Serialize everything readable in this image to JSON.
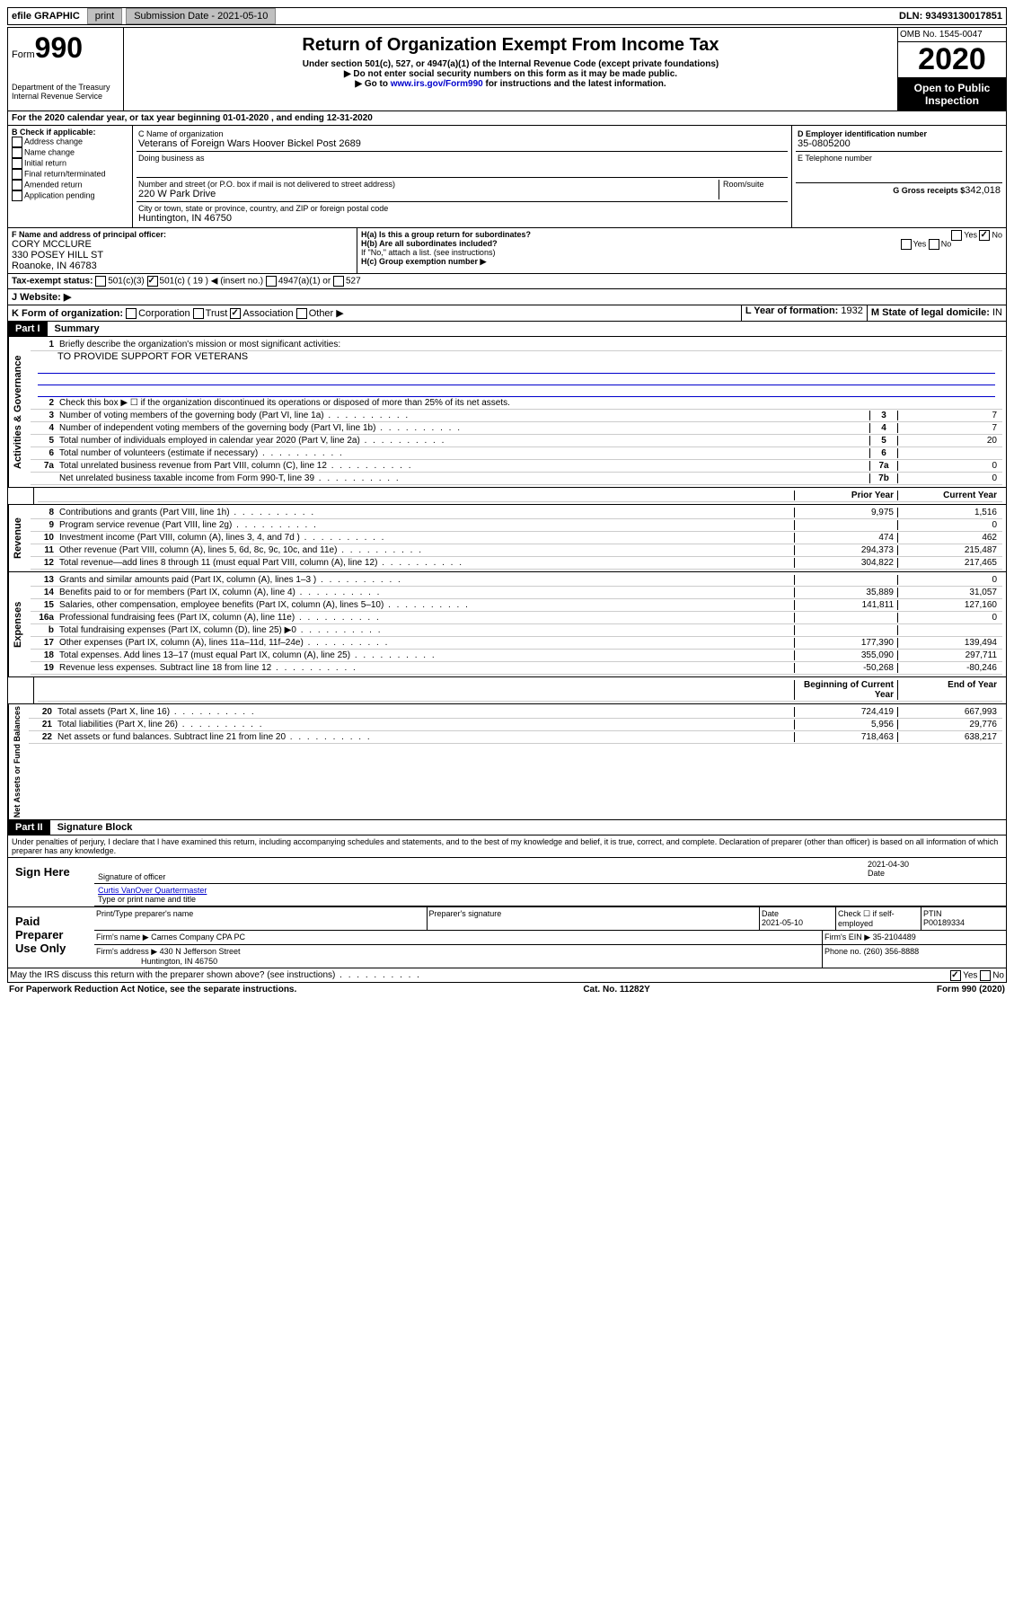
{
  "topbar": {
    "efile": "efile GRAPHIC",
    "print": "print",
    "sub_label": "Submission Date - 2021-05-10",
    "dln": "DLN: 93493130017851"
  },
  "header": {
    "form_label": "Form",
    "form_no": "990",
    "dept": "Department of the Treasury\nInternal Revenue Service",
    "title": "Return of Organization Exempt From Income Tax",
    "sub1": "Under section 501(c), 527, or 4947(a)(1) of the Internal Revenue Code (except private foundations)",
    "sub2": "▶ Do not enter social security numbers on this form as it may be made public.",
    "sub3_pre": "▶ Go to ",
    "sub3_link": "www.irs.gov/Form990",
    "sub3_post": " for instructions and the latest information.",
    "omb": "OMB No. 1545-0047",
    "year": "2020",
    "open": "Open to Public Inspection"
  },
  "a_line": "For the 2020 calendar year, or tax year beginning 01-01-2020    , and ending 12-31-2020",
  "b": {
    "label": "B Check if applicable:",
    "address": "Address change",
    "name": "Name change",
    "initial": "Initial return",
    "final": "Final return/terminated",
    "amended": "Amended return",
    "pending": "Application pending"
  },
  "c": {
    "name_label": "C Name of organization",
    "name": "Veterans of Foreign Wars Hoover Bickel Post 2689",
    "dba": "Doing business as",
    "addr_label": "Number and street (or P.O. box if mail is not delivered to street address)",
    "room": "Room/suite",
    "addr": "220 W Park Drive",
    "city_label": "City or town, state or province, country, and ZIP or foreign postal code",
    "city": "Huntington, IN  46750"
  },
  "d": {
    "label": "D Employer identification number",
    "ein": "35-0805200"
  },
  "e": {
    "label": "E Telephone number"
  },
  "f": {
    "label": "F  Name and address of principal officer:",
    "name": "CORY MCCLURE",
    "addr1": "330 POSEY HILL ST",
    "addr2": "Roanoke, IN  46783"
  },
  "g": {
    "label": "G Gross receipts $",
    "val": "342,018"
  },
  "h": {
    "a": "H(a)  Is this a group return for subordinates?",
    "b": "H(b)  Are all subordinates included?",
    "note": "If \"No,\" attach a list. (see instructions)",
    "c": "H(c)  Group exemption number ▶",
    "yes": "Yes",
    "no": "No"
  },
  "i": {
    "label": "Tax-exempt status:",
    "c19": "501(c) ( 19 ) ◀ (insert no.)",
    "c3": "501(c)(3)",
    "c4947": "4947(a)(1) or",
    "c527": "527"
  },
  "j": {
    "label": "J   Website: ▶"
  },
  "k": {
    "label": "K Form of organization:",
    "corp": "Corporation",
    "trust": "Trust",
    "assoc": "Association",
    "other": "Other ▶"
  },
  "l": {
    "label": "L Year of formation:",
    "val": "1932"
  },
  "m": {
    "label": "M State of legal domicile:",
    "val": "IN"
  },
  "parts": {
    "p1": "Part I",
    "p1_title": "Summary",
    "p2": "Part II",
    "p2_title": "Signature Block"
  },
  "summary": {
    "q1": "Briefly describe the organization's mission or most significant activities:",
    "mission": "TO PROVIDE SUPPORT FOR VETERANS",
    "q2": "Check this box ▶ ☐  if the organization discontinued its operations or disposed of more than 25% of its net assets.",
    "rows": [
      {
        "n": "3",
        "d": "Number of voting members of the governing body (Part VI, line 1a)",
        "box": "3",
        "v": "7"
      },
      {
        "n": "4",
        "d": "Number of independent voting members of the governing body (Part VI, line 1b)",
        "box": "4",
        "v": "7"
      },
      {
        "n": "5",
        "d": "Total number of individuals employed in calendar year 2020 (Part V, line 2a)",
        "box": "5",
        "v": "20"
      },
      {
        "n": "6",
        "d": "Total number of volunteers (estimate if necessary)",
        "box": "6",
        "v": ""
      },
      {
        "n": "7a",
        "d": "Total unrelated business revenue from Part VIII, column (C), line 12",
        "box": "7a",
        "v": "0"
      },
      {
        "n": "",
        "d": "Net unrelated business taxable income from Form 990-T, line 39",
        "box": "7b",
        "v": "0"
      }
    ],
    "prior": "Prior Year",
    "current": "Current Year",
    "rev_rows": [
      {
        "n": "8",
        "d": "Contributions and grants (Part VIII, line 1h)",
        "p": "9,975",
        "c": "1,516"
      },
      {
        "n": "9",
        "d": "Program service revenue (Part VIII, line 2g)",
        "p": "",
        "c": "0"
      },
      {
        "n": "10",
        "d": "Investment income (Part VIII, column (A), lines 3, 4, and 7d )",
        "p": "474",
        "c": "462"
      },
      {
        "n": "11",
        "d": "Other revenue (Part VIII, column (A), lines 5, 6d, 8c, 9c, 10c, and 11e)",
        "p": "294,373",
        "c": "215,487"
      },
      {
        "n": "12",
        "d": "Total revenue—add lines 8 through 11 (must equal Part VIII, column (A), line 12)",
        "p": "304,822",
        "c": "217,465"
      }
    ],
    "exp_rows": [
      {
        "n": "13",
        "d": "Grants and similar amounts paid (Part IX, column (A), lines 1–3 )",
        "p": "",
        "c": "0"
      },
      {
        "n": "14",
        "d": "Benefits paid to or for members (Part IX, column (A), line 4)",
        "p": "35,889",
        "c": "31,057"
      },
      {
        "n": "15",
        "d": "Salaries, other compensation, employee benefits (Part IX, column (A), lines 5–10)",
        "p": "141,811",
        "c": "127,160"
      },
      {
        "n": "16a",
        "d": "Professional fundraising fees (Part IX, column (A), line 11e)",
        "p": "",
        "c": "0"
      },
      {
        "n": "b",
        "d": "Total fundraising expenses (Part IX, column (D), line 25) ▶0",
        "p": "",
        "c": ""
      },
      {
        "n": "17",
        "d": "Other expenses (Part IX, column (A), lines 11a–11d, 11f–24e)",
        "p": "177,390",
        "c": "139,494"
      },
      {
        "n": "18",
        "d": "Total expenses. Add lines 13–17 (must equal Part IX, column (A), line 25)",
        "p": "355,090",
        "c": "297,711"
      },
      {
        "n": "19",
        "d": "Revenue less expenses. Subtract line 18 from line 12",
        "p": "-50,268",
        "c": "-80,246"
      }
    ],
    "begin": "Beginning of Current Year",
    "end": "End of Year",
    "net_rows": [
      {
        "n": "20",
        "d": "Total assets (Part X, line 16)",
        "p": "724,419",
        "c": "667,993"
      },
      {
        "n": "21",
        "d": "Total liabilities (Part X, line 26)",
        "p": "5,956",
        "c": "29,776"
      },
      {
        "n": "22",
        "d": "Net assets or fund balances. Subtract line 21 from line 20",
        "p": "718,463",
        "c": "638,217"
      }
    ],
    "sections": {
      "gov": "Activities & Governance",
      "rev": "Revenue",
      "exp": "Expenses",
      "net": "Net Assets or Fund Balances"
    }
  },
  "perjury": "Under penalties of perjury, I declare that I have examined this return, including accompanying schedules and statements, and to the best of my knowledge and belief, it is true, correct, and complete. Declaration of preparer (other than officer) is based on all information of which preparer has any knowledge.",
  "sign": {
    "here": "Sign Here",
    "sig_officer": "Signature of officer",
    "date": "2021-04-30",
    "date_label": "Date",
    "name": "Curtis VanOver Quartermaster",
    "name_label": "Type or print name and title"
  },
  "paid": {
    "label": "Paid Preparer Use Only",
    "print_label": "Print/Type preparer's name",
    "sig_label": "Preparer's signature",
    "date_label": "Date",
    "date": "2021-05-10",
    "check_label": "Check ☐ if self-employed",
    "ptin_label": "PTIN",
    "ptin": "P00189334",
    "firm_label": "Firm's name   ▶",
    "firm": "Carnes Company CPA PC",
    "ein_label": "Firm's EIN ▶",
    "ein": "35-2104489",
    "addr_label": "Firm's address ▶",
    "addr": "430 N Jefferson Street",
    "addr2": "Huntington, IN  46750",
    "phone_label": "Phone no.",
    "phone": "(260) 356-8888"
  },
  "discuss": "May the IRS discuss this return with the preparer shown above? (see instructions)",
  "footer": {
    "left": "For Paperwork Reduction Act Notice, see the separate instructions.",
    "mid": "Cat. No. 11282Y",
    "right": "Form 990 (2020)"
  }
}
